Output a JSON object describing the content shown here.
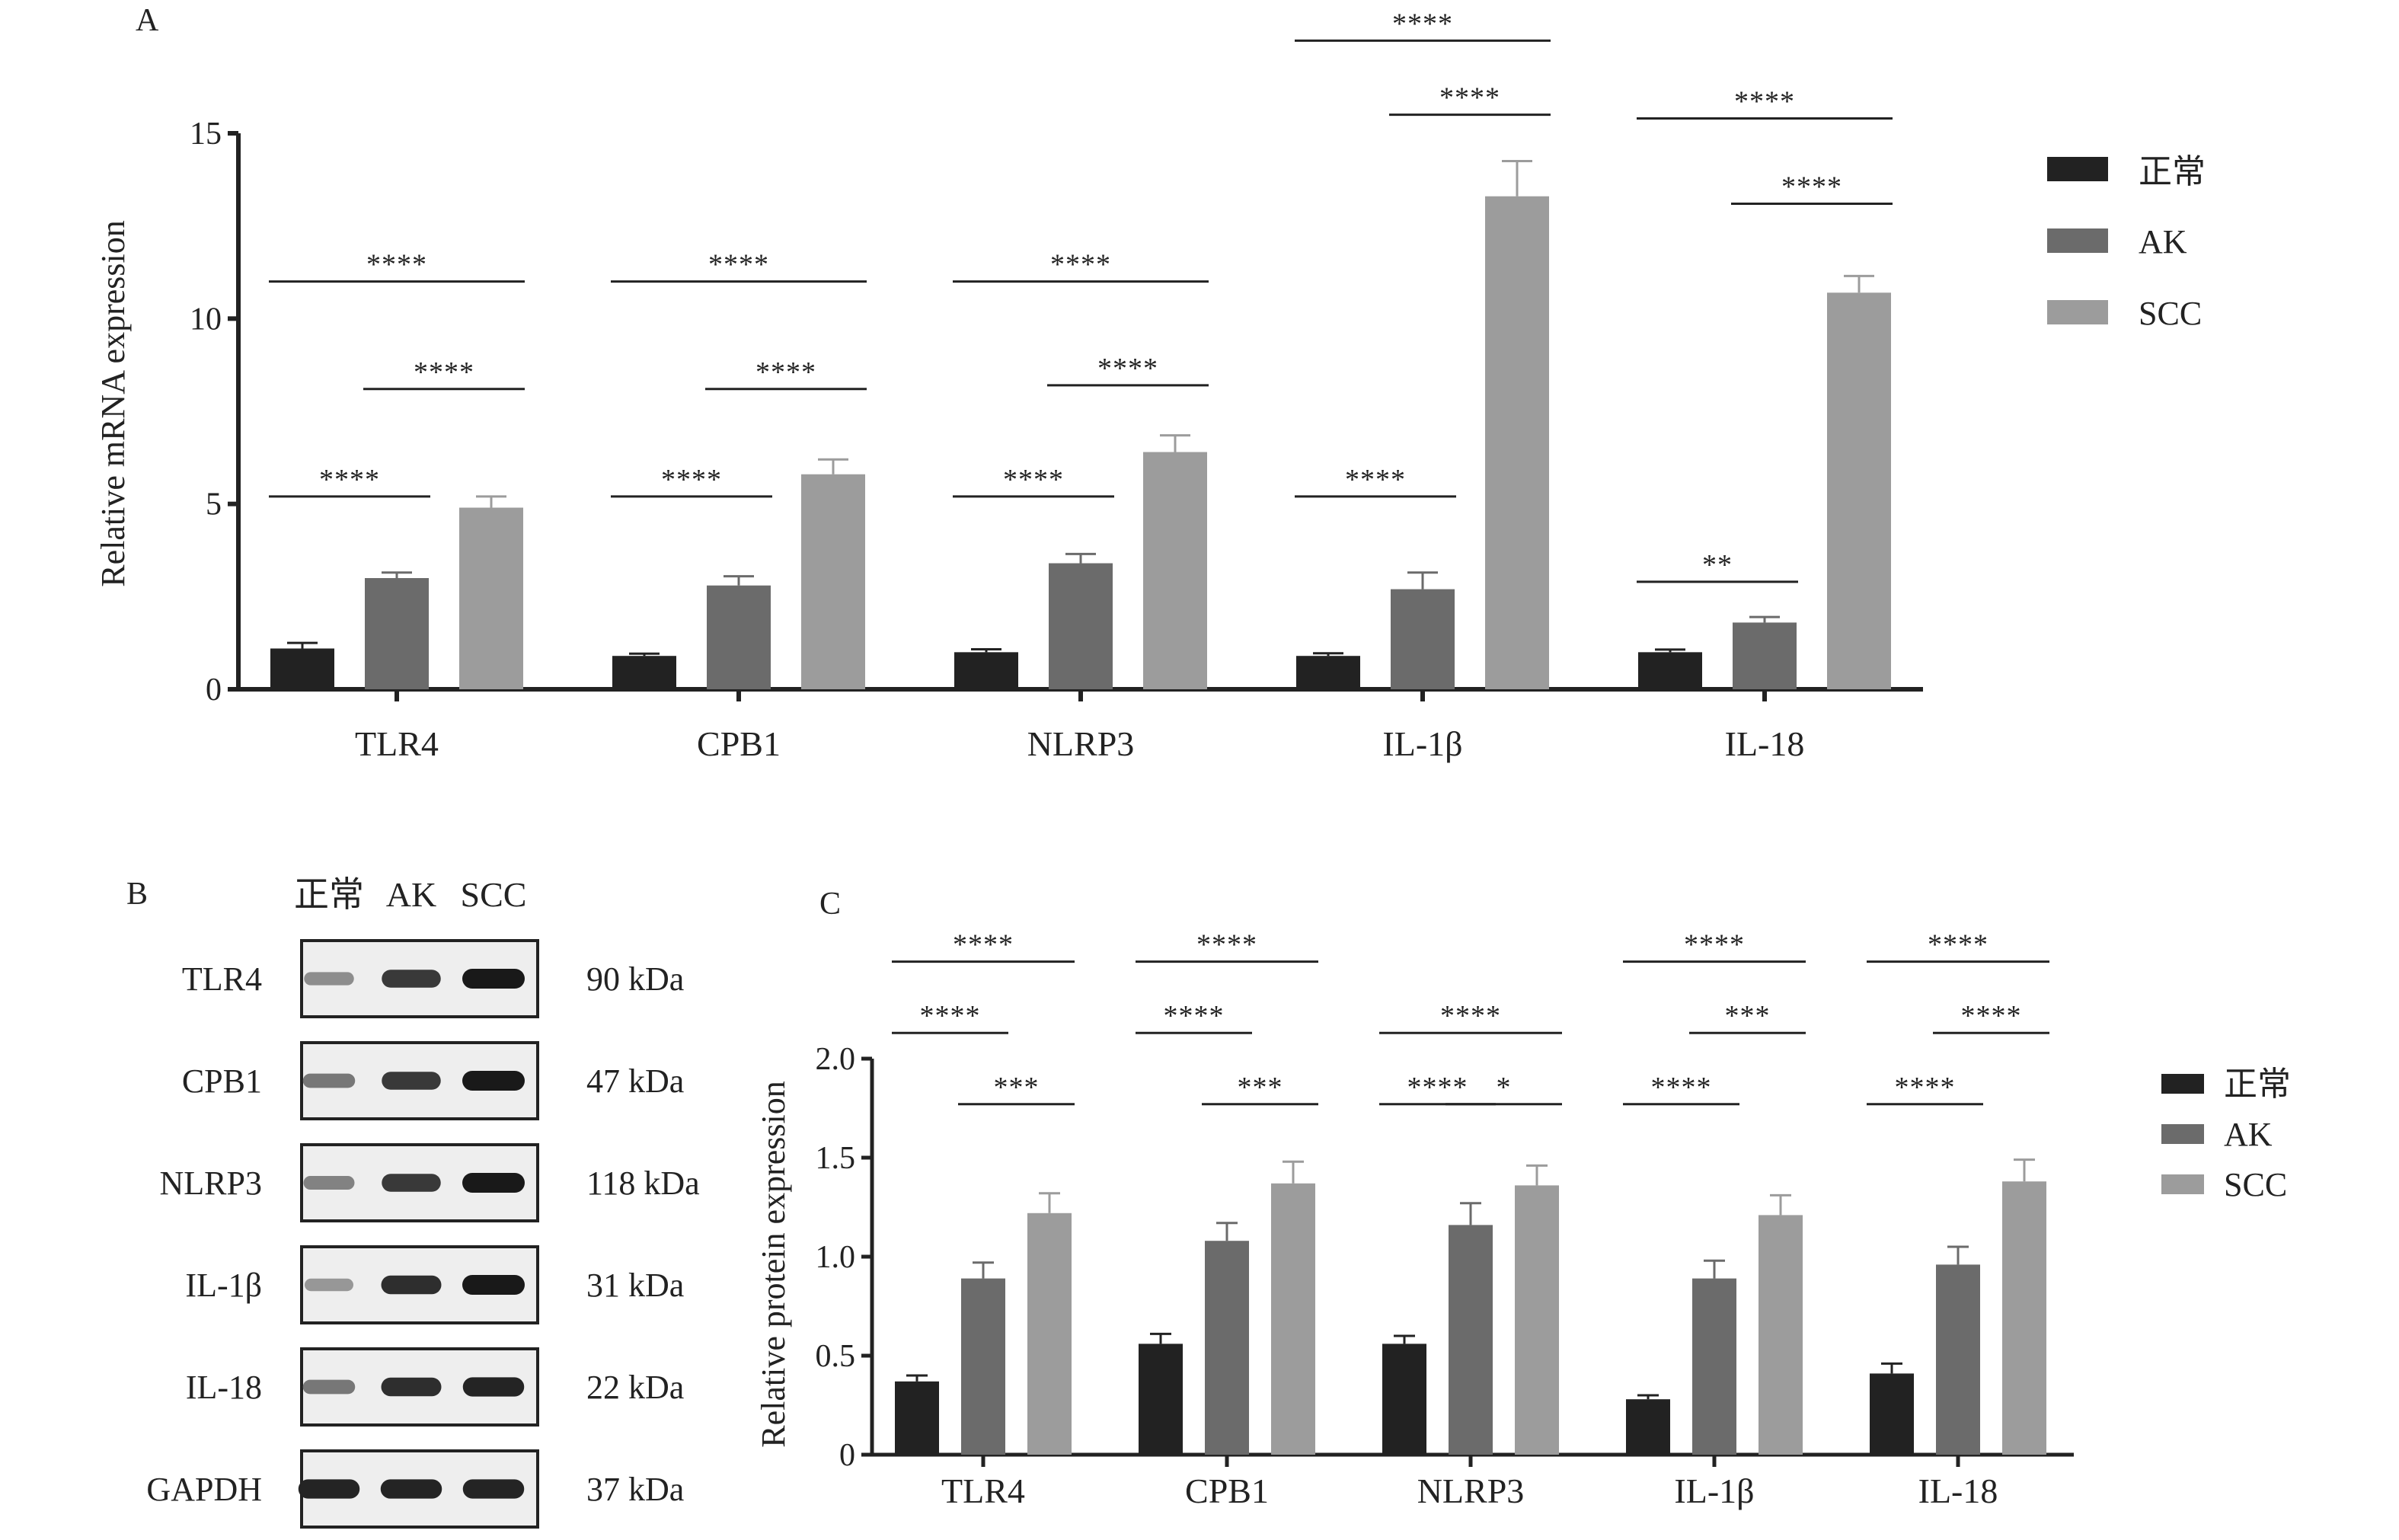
{
  "colors": {
    "normal": "#222222",
    "ak": "#6b6b6b",
    "scc": "#9c9c9c",
    "axis": "#222222"
  },
  "legend": [
    "正常",
    "AK",
    "SCC"
  ],
  "panels": [
    {
      "letter": "A"
    },
    {
      "letter": "B"
    },
    {
      "letter": "C"
    }
  ],
  "chart_data": [
    {
      "panel": "A",
      "type": "bar",
      "ylabel": "Relative mRNA expression",
      "ylim": [
        0,
        15
      ],
      "yticks": [
        0,
        5,
        10,
        15
      ],
      "categories": [
        "TLR4",
        "CPB1",
        "NLRP3",
        "IL-1β",
        "IL-18"
      ],
      "series": [
        {
          "name": "正常",
          "values": [
            1.1,
            0.9,
            1.0,
            0.9,
            1.0
          ],
          "errors": [
            0.15,
            0.06,
            0.08,
            0.07,
            0.07
          ]
        },
        {
          "name": "AK",
          "values": [
            3.0,
            2.8,
            3.4,
            2.7,
            1.8
          ],
          "errors": [
            0.15,
            0.25,
            0.25,
            0.45,
            0.15
          ]
        },
        {
          "name": "SCC",
          "values": [
            4.9,
            5.8,
            6.4,
            13.3,
            10.7
          ],
          "errors": [
            0.3,
            0.4,
            0.45,
            0.95,
            0.45
          ]
        }
      ],
      "significance": [
        [
          {
            "from": 0,
            "to": 2,
            "level": 11.0,
            "label": "****"
          },
          {
            "from": 1,
            "to": 2,
            "level": 8.1,
            "label": "****"
          },
          {
            "from": 0,
            "to": 1,
            "level": 5.2,
            "label": "****"
          }
        ],
        [
          {
            "from": 0,
            "to": 2,
            "level": 11.0,
            "label": "****"
          },
          {
            "from": 1,
            "to": 2,
            "level": 8.1,
            "label": "****"
          },
          {
            "from": 0,
            "to": 1,
            "level": 5.2,
            "label": "****"
          }
        ],
        [
          {
            "from": 0,
            "to": 2,
            "level": 11.0,
            "label": "****"
          },
          {
            "from": 1,
            "to": 2,
            "level": 8.2,
            "label": "****"
          },
          {
            "from": 0,
            "to": 1,
            "level": 5.2,
            "label": "****"
          }
        ],
        [
          {
            "from": 0,
            "to": 2,
            "level": 17.5,
            "label": "****"
          },
          {
            "from": 1,
            "to": 2,
            "level": 15.5,
            "label": "****"
          },
          {
            "from": 0,
            "to": 1,
            "level": 5.2,
            "label": "****"
          }
        ],
        [
          {
            "from": 0,
            "to": 2,
            "level": 15.4,
            "label": "****"
          },
          {
            "from": 1,
            "to": 2,
            "level": 13.1,
            "label": "****"
          },
          {
            "from": 0,
            "to": 1,
            "level": 2.9,
            "label": "**"
          }
        ]
      ]
    },
    {
      "panel": "C",
      "type": "bar",
      "ylabel": "Relative protein expression",
      "ylim": [
        0,
        2.0
      ],
      "yticks": [
        0,
        0.5,
        1.0,
        1.5,
        2.0
      ],
      "ytick_labels": [
        "0",
        "0.5",
        "1.0",
        "1.5",
        "2.0"
      ],
      "categories": [
        "TLR4",
        "CPB1",
        "NLRP3",
        "IL-1β",
        "IL-18"
      ],
      "series": [
        {
          "name": "正常",
          "values": [
            0.37,
            0.56,
            0.56,
            0.28,
            0.41
          ],
          "errors": [
            0.03,
            0.05,
            0.04,
            0.02,
            0.05
          ]
        },
        {
          "name": "AK",
          "values": [
            0.89,
            1.08,
            1.16,
            0.89,
            0.96
          ],
          "errors": [
            0.08,
            0.09,
            0.11,
            0.09,
            0.09
          ]
        },
        {
          "name": "SCC",
          "values": [
            1.22,
            1.37,
            1.36,
            1.21,
            1.38
          ],
          "errors": [
            0.1,
            0.11,
            0.1,
            0.1,
            0.11
          ]
        }
      ],
      "significance": [
        [
          {
            "from": 0,
            "to": 2,
            "level": 2.49,
            "label": "****"
          },
          {
            "from": 0,
            "to": 1,
            "level": 2.13,
            "label": "****"
          },
          {
            "from": 1,
            "to": 2,
            "level": 1.77,
            "label": "***"
          }
        ],
        [
          {
            "from": 0,
            "to": 2,
            "level": 2.49,
            "label": "****"
          },
          {
            "from": 0,
            "to": 1,
            "level": 2.13,
            "label": "****"
          },
          {
            "from": 1,
            "to": 2,
            "level": 1.77,
            "label": "***"
          }
        ],
        [
          {
            "from": 0,
            "to": 2,
            "level": 2.13,
            "label": "****"
          },
          {
            "from": 0,
            "to": 1,
            "level": 1.77,
            "label": "****"
          },
          {
            "from": 1,
            "to": 2,
            "level": 1.77,
            "label": "*"
          }
        ],
        [
          {
            "from": 0,
            "to": 2,
            "level": 2.49,
            "label": "****"
          },
          {
            "from": 1,
            "to": 2,
            "level": 2.13,
            "label": "***"
          },
          {
            "from": 0,
            "to": 1,
            "level": 1.77,
            "label": "****"
          }
        ],
        [
          {
            "from": 0,
            "to": 2,
            "level": 2.49,
            "label": "****"
          },
          {
            "from": 1,
            "to": 2,
            "level": 2.13,
            "label": "****"
          },
          {
            "from": 0,
            "to": 1,
            "level": 1.77,
            "label": "****"
          }
        ]
      ]
    }
  ],
  "western_blot": {
    "lanes": [
      "正常",
      "AK",
      "SCC"
    ],
    "rows": [
      {
        "protein": "TLR4",
        "size": "90 kDa",
        "intensity": [
          0.45,
          0.85,
          1.0
        ]
      },
      {
        "protein": "CPB1",
        "size": "47 kDa",
        "intensity": [
          0.55,
          0.85,
          1.0
        ]
      },
      {
        "protein": "NLRP3",
        "size": "118 kDa",
        "intensity": [
          0.5,
          0.85,
          1.0
        ]
      },
      {
        "protein": "IL-1β",
        "size": "31 kDa",
        "intensity": [
          0.4,
          0.9,
          1.0
        ]
      },
      {
        "protein": "IL-18",
        "size": "22 kDa",
        "intensity": [
          0.55,
          0.9,
          0.95
        ]
      },
      {
        "protein": "GAPDH",
        "size": "37 kDa",
        "intensity": [
          0.95,
          0.95,
          0.95
        ]
      }
    ]
  }
}
